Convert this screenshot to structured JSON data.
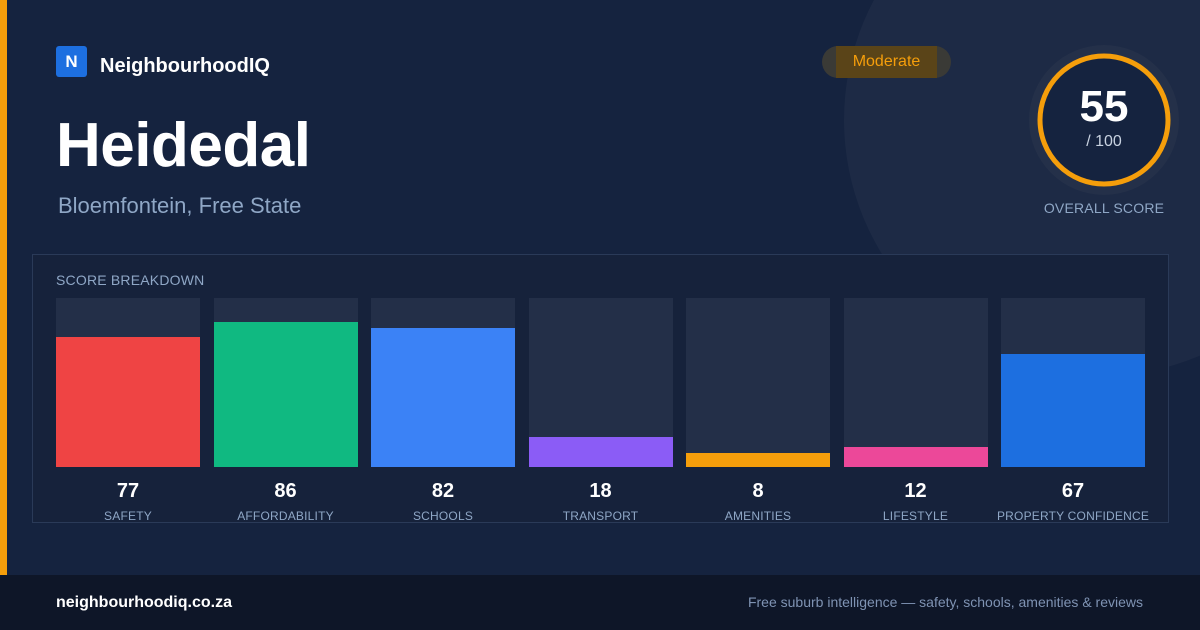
{
  "brand": {
    "logo_letter": "N",
    "name": "NeighbourhoodIQ"
  },
  "suburb": {
    "name": "Heidedal",
    "location": "Bloemfontein, Free State"
  },
  "rating_badge": "Moderate",
  "overall": {
    "score": "55",
    "max": "/ 100",
    "caption": "OVERALL SCORE",
    "fraction": 0.55
  },
  "breakdown": {
    "title": "SCORE BREAKDOWN",
    "items": [
      {
        "label": "SAFETY",
        "value": "77",
        "score": 77,
        "color": "#ef4444"
      },
      {
        "label": "AFFORDABILITY",
        "value": "86",
        "score": 86,
        "color": "#10b981"
      },
      {
        "label": "SCHOOLS",
        "value": "82",
        "score": 82,
        "color": "#3b82f6"
      },
      {
        "label": "TRANSPORT",
        "value": "18",
        "score": 18,
        "color": "#8b5cf6"
      },
      {
        "label": "AMENITIES",
        "value": "8",
        "score": 8,
        "color": "#f59e0b"
      },
      {
        "label": "LIFESTYLE",
        "value": "12",
        "score": 12,
        "color": "#ec4899"
      },
      {
        "label": "PROPERTY CONFIDENCE",
        "value": "67",
        "score": 67,
        "color": "#1d6fe0"
      }
    ]
  },
  "footer": {
    "domain": "neighbourhoodiq.co.za",
    "tagline": "Free suburb intelligence — safety, schools, amenities & reviews"
  },
  "colors": {
    "accent": "#f59e0b",
    "brand": "#1d6fe0",
    "background": "#15233f"
  }
}
